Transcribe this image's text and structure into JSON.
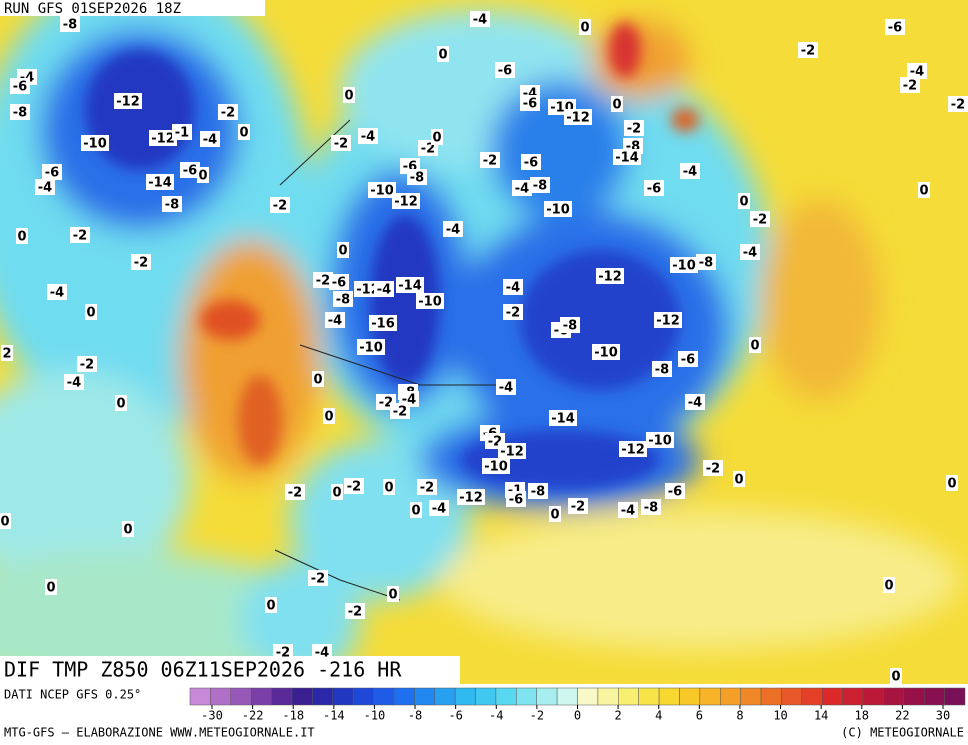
{
  "header": {
    "run": "RUN GFS 01SEP2026 18Z"
  },
  "footer": {
    "field": "DIF TMP Z850 06Z11SEP2026 -216 HR",
    "source": "DATI NCEP GFS 0.25°",
    "credit": "MTG-GFS — ELABORAZIONE WWW.METEOGIORNALE.IT",
    "copyright": "(C) METEOGIORNALE"
  },
  "colorbar": {
    "colors": [
      "#c88ad8",
      "#b070c8",
      "#9858b8",
      "#7a40a8",
      "#5a2a98",
      "#3a2090",
      "#2a28a8",
      "#2038c0",
      "#2048d8",
      "#1e5ce8",
      "#1e70f0",
      "#2088f0",
      "#28a0f0",
      "#30b8f0",
      "#40c8f0",
      "#58d8f0",
      "#80e4f0",
      "#a8eef0",
      "#d0f6f0",
      "#f8f8c8",
      "#f8f4a0",
      "#f8ee70",
      "#f8e448",
      "#f8d830",
      "#f8c828",
      "#f8b428",
      "#f4a028",
      "#f08828",
      "#ec7028",
      "#e85828",
      "#e44028",
      "#dc2828",
      "#cc2030",
      "#bc1838",
      "#a81440",
      "#981048",
      "#881050",
      "#781058"
    ],
    "labels": [
      -30,
      -22,
      -18,
      -14,
      -10,
      -8,
      -6,
      -4,
      -2,
      0,
      2,
      4,
      6,
      8,
      10,
      14,
      18,
      22,
      30
    ]
  },
  "contour_labels": [
    -4,
    -8,
    -6,
    0,
    0,
    -2,
    -4,
    -6,
    -6,
    -4,
    -2,
    -4,
    -6,
    -8,
    -12,
    -2,
    0,
    -10,
    -12,
    0,
    -2,
    0,
    -12,
    -1,
    -4,
    -4,
    -2,
    -2,
    0,
    -10,
    -2,
    -8,
    -14,
    -6,
    -2,
    -6,
    -6,
    -6,
    0,
    -8,
    -4,
    -14,
    -4,
    -10,
    -4,
    -8,
    -6,
    0,
    -12,
    -8,
    -2,
    0,
    -10,
    -2,
    -4,
    0,
    -2,
    0,
    -4,
    -2,
    -10,
    -8,
    -12,
    -2,
    -6,
    -12,
    -4,
    -14,
    -4,
    -4,
    -8,
    -10,
    0,
    -2,
    -4,
    -16,
    -12,
    -6,
    -8,
    2,
    -10,
    -10,
    -2,
    -6,
    -8,
    0,
    -4,
    0,
    -4,
    -4,
    0,
    -8,
    -4,
    -2,
    -2,
    0,
    -14,
    -6,
    -2,
    -12,
    -12,
    -10,
    -10,
    -2,
    0,
    0,
    -2,
    0,
    -2,
    0,
    -2,
    -12,
    -1,
    -8,
    -6,
    -6,
    0,
    0,
    0,
    -4,
    -2,
    0,
    -4,
    -8,
    -2,
    0,
    0,
    0,
    0,
    -2,
    -2,
    -4,
    0
  ]
}
